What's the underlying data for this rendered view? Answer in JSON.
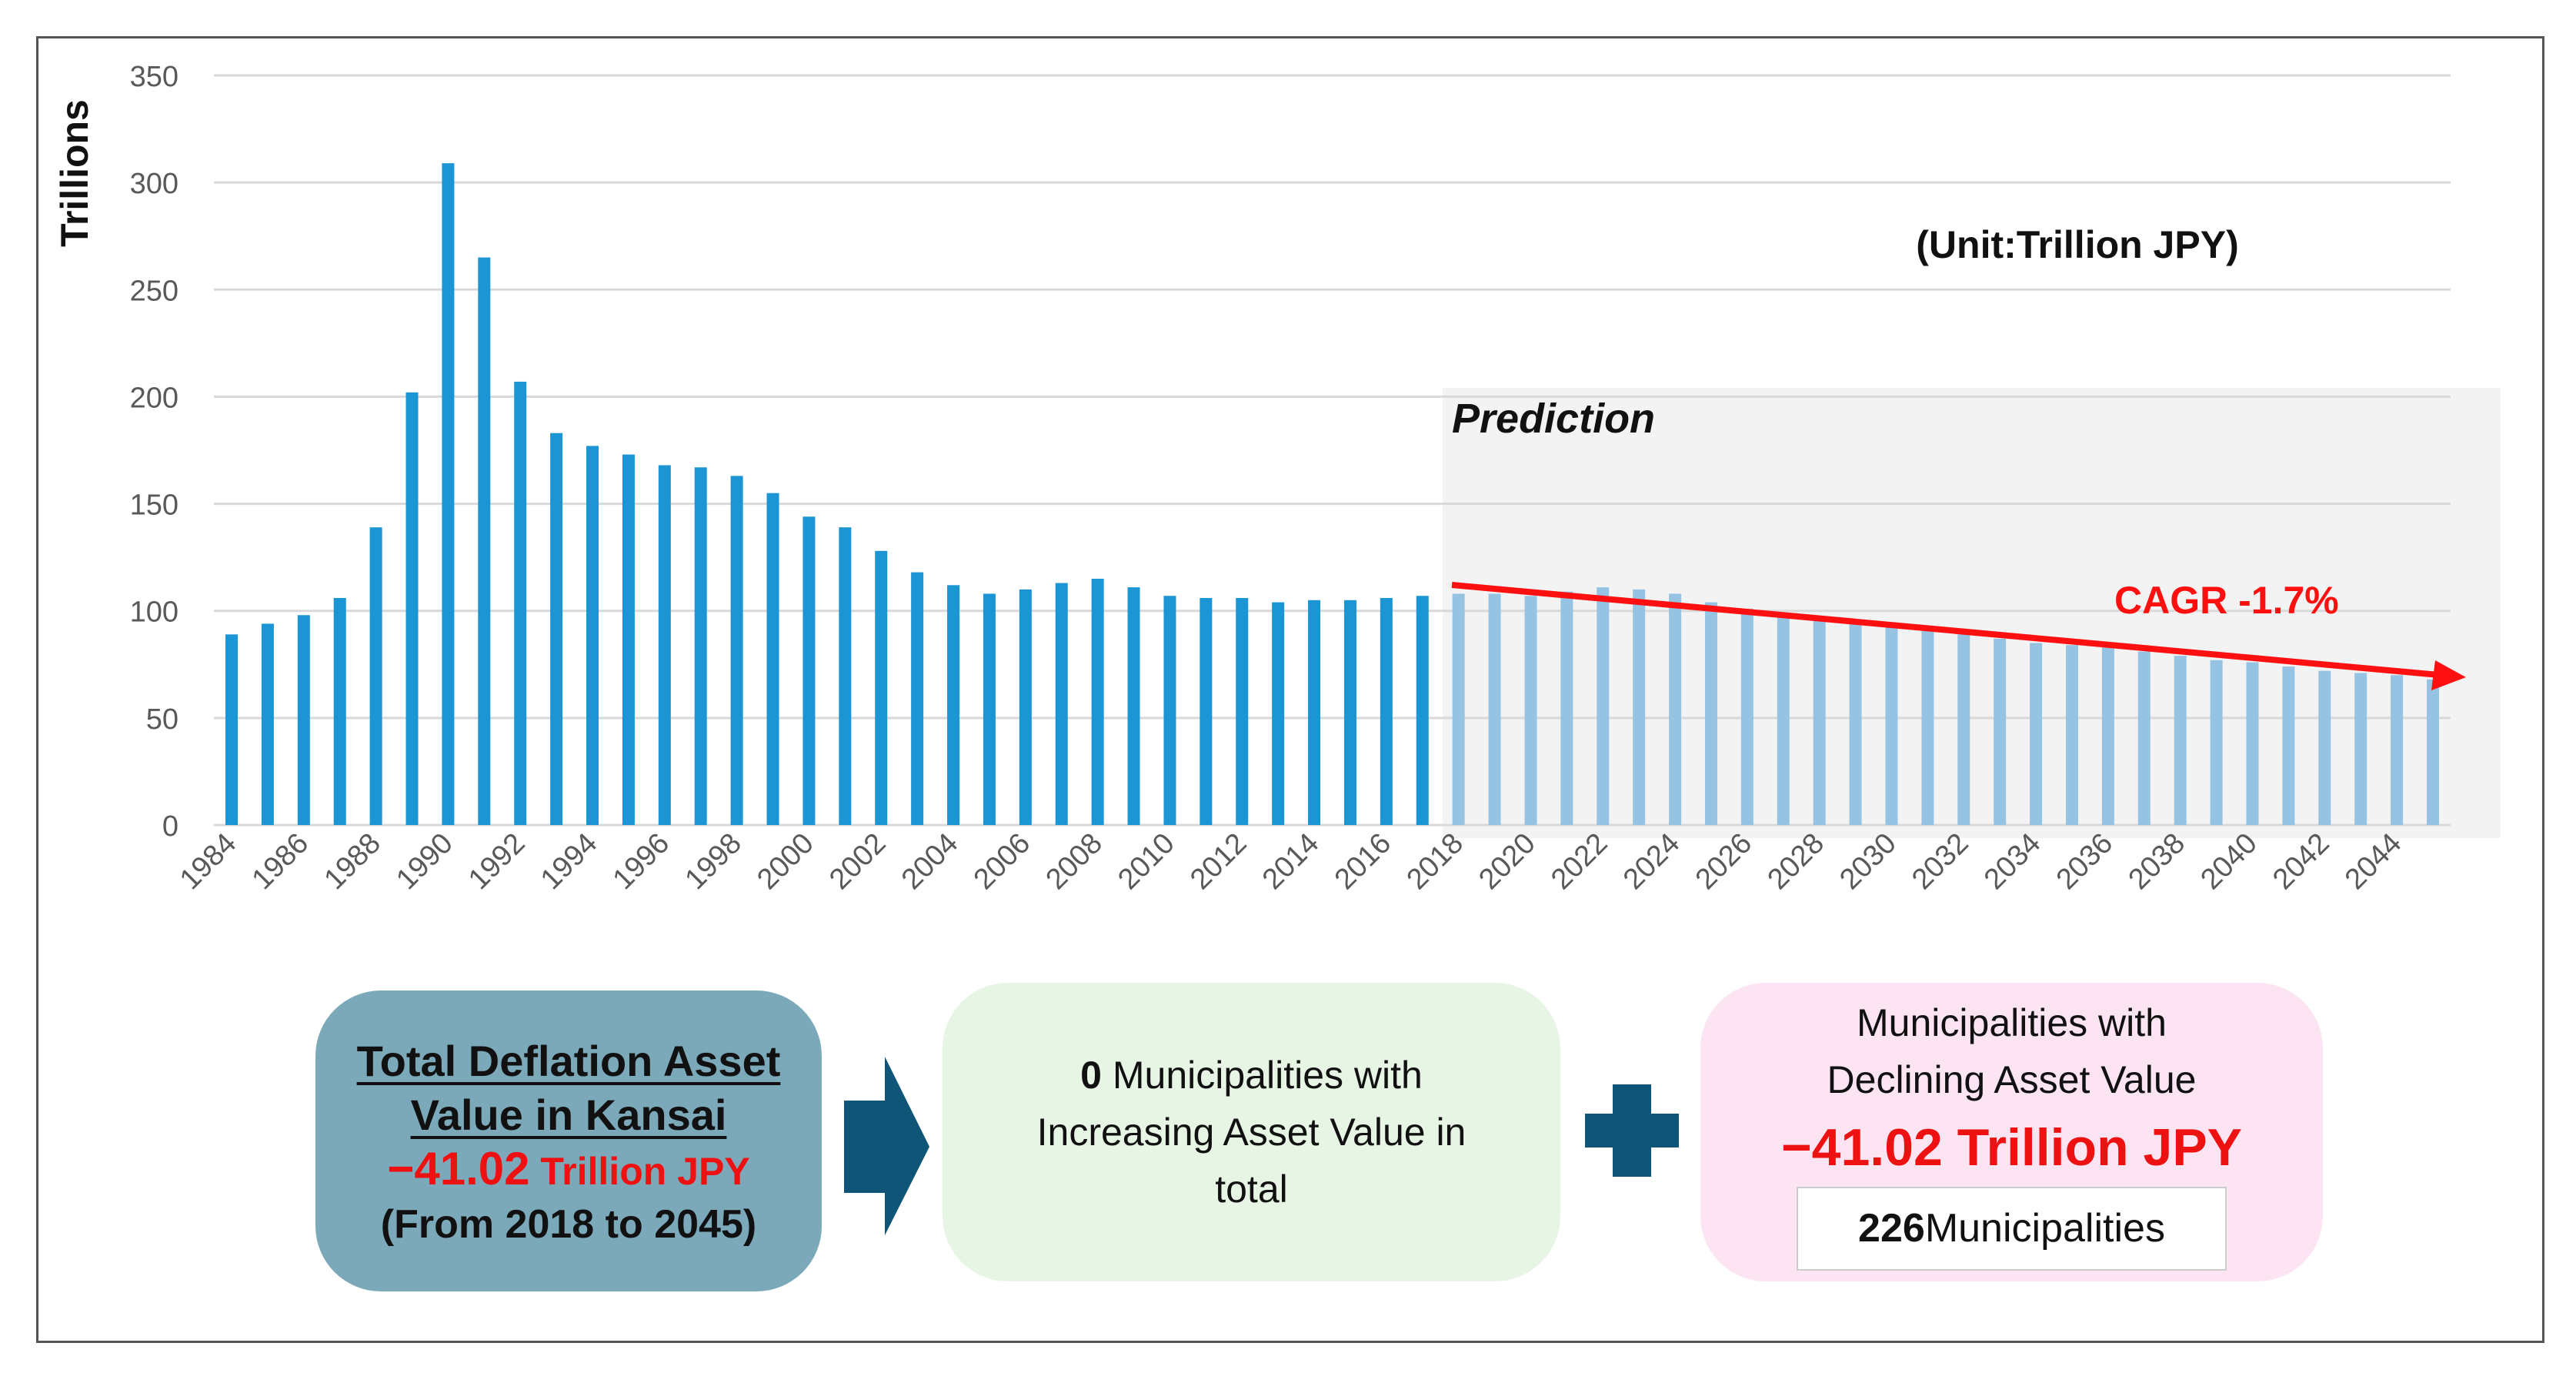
{
  "chart_data": {
    "type": "bar",
    "ylabel": "Trillions",
    "unit_note": "(Unit:Trillion JPY)",
    "prediction_label": "Prediction",
    "trend_label": "CAGR -1.7%",
    "ylim": [
      0,
      350
    ],
    "yticks": [
      "0",
      "50",
      "100",
      "150",
      "200",
      "250",
      "300",
      "350"
    ],
    "grid": true,
    "x": [
      1984,
      1985,
      1986,
      1987,
      1988,
      1989,
      1990,
      1991,
      1992,
      1993,
      1994,
      1995,
      1996,
      1997,
      1998,
      1999,
      2000,
      2001,
      2002,
      2003,
      2004,
      2005,
      2006,
      2007,
      2008,
      2009,
      2010,
      2011,
      2012,
      2013,
      2014,
      2015,
      2016,
      2017,
      2018,
      2019,
      2020,
      2021,
      2022,
      2023,
      2024,
      2025,
      2026,
      2027,
      2028,
      2029,
      2030,
      2031,
      2032,
      2033,
      2034,
      2035,
      2036,
      2037,
      2038,
      2039,
      2040,
      2041,
      2042,
      2043,
      2044,
      2045
    ],
    "xtick_labels": [
      "1984",
      "1986",
      "1988",
      "1990",
      "1992",
      "1994",
      "1996",
      "1998",
      "2000",
      "2002",
      "2004",
      "2006",
      "2008",
      "2010",
      "2012",
      "2014",
      "2016",
      "2018",
      "2020",
      "2022",
      "2024",
      "2026",
      "2028",
      "2030",
      "2032",
      "2034",
      "2036",
      "2038",
      "2040",
      "2042",
      "2044"
    ],
    "series": [
      {
        "values": [
          89,
          94,
          98,
          106,
          139,
          202,
          309,
          265,
          207,
          183,
          177,
          173,
          168,
          167,
          163,
          155,
          144,
          139,
          128,
          118,
          112,
          108,
          110,
          113,
          115,
          111,
          107,
          106,
          106,
          104,
          105,
          105,
          106,
          107,
          null,
          null,
          null,
          null,
          null,
          null,
          null,
          null,
          null,
          null,
          null,
          null,
          null,
          null,
          null,
          null,
          null,
          null,
          null,
          null,
          null,
          null,
          null,
          null,
          null,
          null,
          null,
          null
        ],
        "color": "#1B95D3"
      },
      {
        "values": [
          null,
          null,
          null,
          null,
          null,
          null,
          null,
          null,
          null,
          null,
          null,
          null,
          null,
          null,
          null,
          null,
          null,
          null,
          null,
          null,
          null,
          null,
          null,
          null,
          null,
          null,
          null,
          null,
          null,
          null,
          null,
          null,
          null,
          null,
          108,
          108,
          107,
          109,
          111,
          110,
          108,
          104,
          101,
          99,
          97,
          94,
          93,
          91,
          89,
          87,
          85,
          84,
          83,
          81,
          79,
          77,
          76,
          74,
          72,
          71,
          70,
          68
        ],
        "color": "#97C3E2"
      }
    ],
    "trend_color": "#FF1010",
    "prediction_shade": "#F3F3F3"
  },
  "summary": {
    "box1": {
      "title_line1": "Total Deflation Asset",
      "title_line2": "Value in Kansai",
      "value": "−41.02",
      "unit": " Trillion JPY",
      "range": "(From 2018 to 2045)"
    },
    "box2": {
      "count": "0",
      "line1_rest": " Municipalities with",
      "line2": "Increasing Asset Value in",
      "line3": "total"
    },
    "box3": {
      "line1": "Municipalities with",
      "line2": "Declining Asset Value",
      "value": "−41.02 Trillion JPY",
      "count": "226",
      "count_label": " Municipalities"
    },
    "colors": {
      "box1": "#7BA9BA",
      "box2": "#E6F5E4",
      "box3": "#FCE4F3",
      "connector": "#0E5577",
      "value": "#EE1111"
    }
  }
}
